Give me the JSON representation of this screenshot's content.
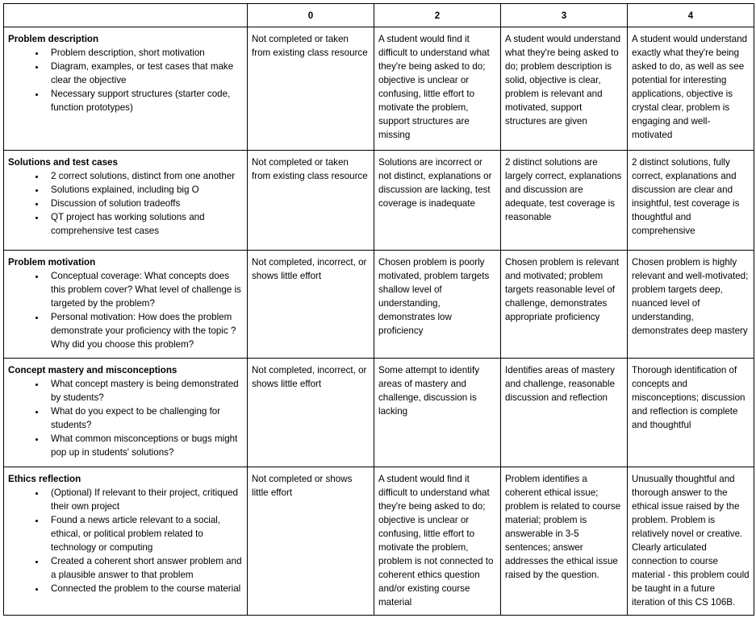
{
  "header": [
    "",
    "0",
    "2",
    "3",
    "4"
  ],
  "rows": [
    {
      "title": "Problem description",
      "bullets": [
        "Problem description, short motivation",
        "Diagram, examples, or test cases that make clear the objective",
        "Necessary support structures (starter code, function prototypes)"
      ],
      "cells": [
        "Not completed or taken from existing class resource",
        "A student would find it difficult to understand what they're being asked to do; objective is unclear or confusing, little effort to motivate the problem, support structures are missing",
        "A student would understand what they're being asked to do; problem description is solid, objective is clear, problem is relevant and motivated, support structures are given",
        "A student would understand exactly what they're being asked to do, as well as see potential for interesting applications, objective is crystal clear, problem is engaging and well-motivated"
      ]
    },
    {
      "title": "Solutions and test cases",
      "bullets": [
        "2 correct solutions, distinct from one another",
        "Solutions explained, including big O",
        "Discussion of solution tradeoffs",
        "QT project has working solutions and comprehensive test cases"
      ],
      "cells": [
        "Not completed or taken from existing class resource",
        "Solutions are incorrect or not distinct, explanations or discussion are lacking, test coverage is inadequate",
        "2 distinct solutions are largely correct, explanations and discussion are adequate, test coverage is reasonable",
        "2 distinct solutions, fully correct, explanations and discussion are clear and insightful, test coverage is thoughtful and comprehensive"
      ]
    },
    {
      "title": "Problem motivation",
      "bullets": [
        "Conceptual coverage: What concepts does this problem cover? What level of challenge is targeted by the problem?",
        "Personal motivation: How does the problem demonstrate your proficiency with the topic ? Why did you choose this problem?"
      ],
      "cells": [
        "Not completed, incorrect, or shows little effort",
        "Chosen problem is poorly motivated, problem targets shallow level of understanding, demonstrates low proficiency",
        "Chosen problem is relevant and motivated; problem targets reasonable level of challenge, demonstrates appropriate proficiency",
        "Chosen problem is highly relevant and well-motivated; problem targets deep, nuanced level of understanding, demonstrates deep mastery"
      ]
    },
    {
      "title": "Concept mastery and misconceptions",
      "bullets": [
        "What concept mastery is being demonstrated by students?",
        "What do you expect to be challenging for students?",
        "What common misconceptions or bugs might pop up in students' solutions?"
      ],
      "cells": [
        "Not completed, incorrect, or shows little effort",
        "Some attempt to identify areas of mastery and challenge, discussion is lacking",
        "Identifies areas of mastery and challenge, reasonable discussion and reflection",
        "Thorough identification of concepts and misconceptions; discussion and reflection is complete and thoughtful"
      ]
    },
    {
      "title": "Ethics reflection",
      "bullets": [
        "(Optional) If relevant to their project, critiqued their own project",
        "Found a news article relevant to a social, ethical, or political problem related to technology or computing",
        "Created a coherent short answer problem and a plausible answer to that problem",
        "Connected the problem to the course material"
      ],
      "cells": [
        "Not completed or shows little effort",
        "A student would find it difficult to understand what they're being asked to do; objective is unclear or confusing, little effort to motivate the problem, problem is not connected to coherent ethics question and/or existing course material",
        "Problem identifies a coherent ethical issue; problem is related to course material; problem is answerable in 3-5 sentences; answer addresses the ethical issue raised by the question.",
        "Unusually thoughtful and thorough answer to the ethical issue raised by the problem. Problem is relatively novel or creative. Clearly articulated connection to course material - this problem could be taught in a future iteration of this CS 106B."
      ]
    }
  ]
}
